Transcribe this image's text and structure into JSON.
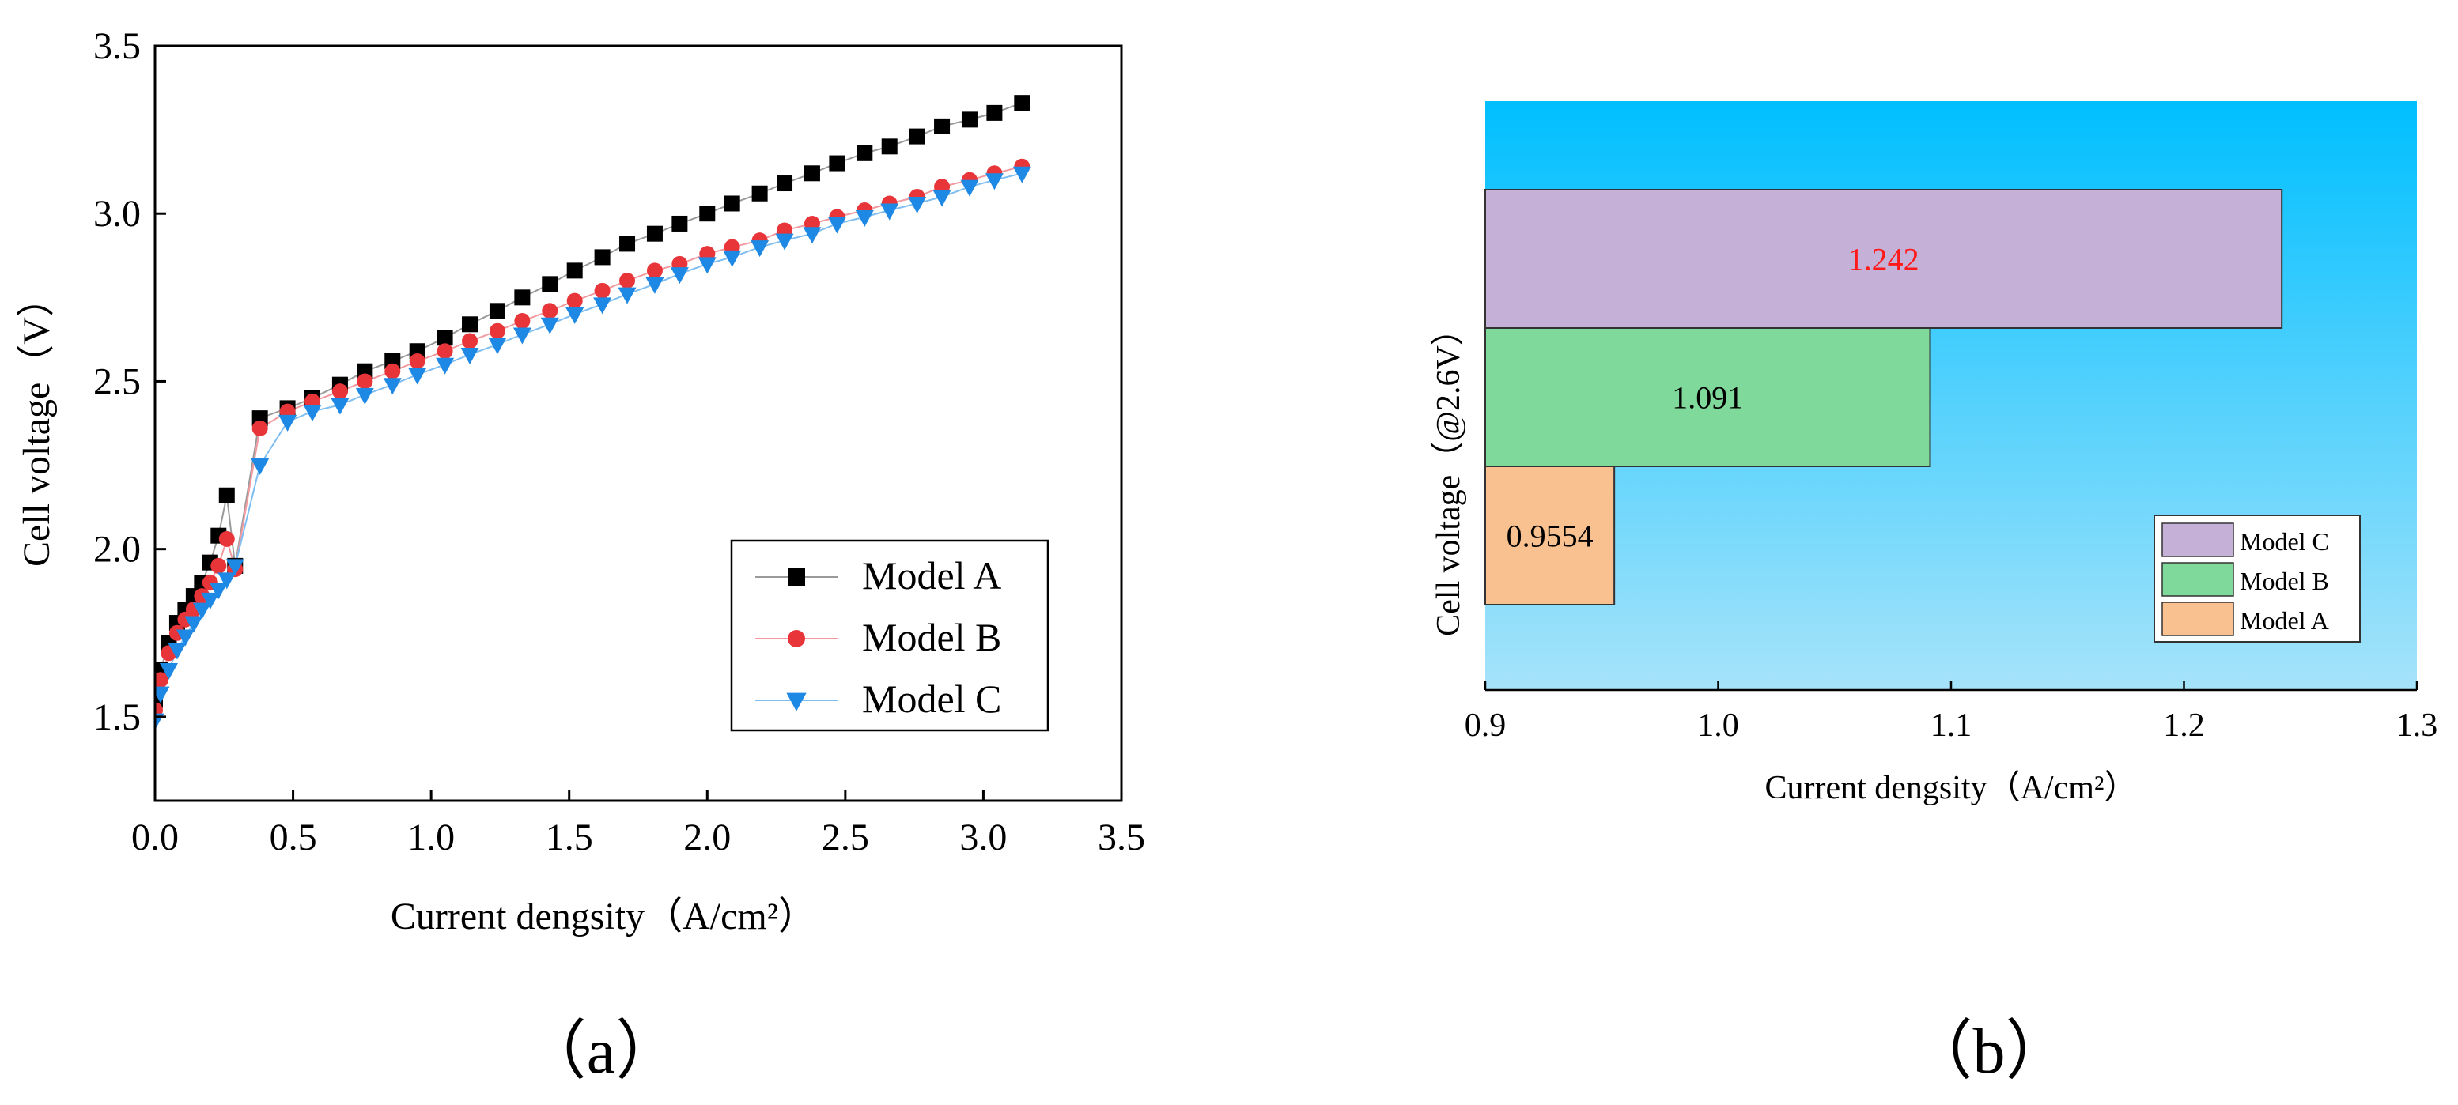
{
  "chart_data": [
    {
      "id": "a",
      "type": "line",
      "panel_label": "（a）",
      "title": "",
      "xlabel": "Current dengsity（A/cm²）",
      "ylabel": "Cell voltage（V）",
      "xlim": [
        0.0,
        3.5
      ],
      "ylim": [
        1.25,
        3.5
      ],
      "x_ticks": [
        "0.0",
        "0.5",
        "1.0",
        "1.5",
        "2.0",
        "2.5",
        "3.0",
        "3.5"
      ],
      "y_ticks": [
        "1.5",
        "2.0",
        "2.5",
        "3.0",
        "3.5"
      ],
      "legend_position": "bottom-right",
      "series": [
        {
          "name": "Model A",
          "marker": "square",
          "color": "#000000",
          "x": [
            0.0,
            0.02,
            0.05,
            0.08,
            0.11,
            0.14,
            0.17,
            0.2,
            0.23,
            0.26,
            0.29,
            0.38,
            0.48,
            0.57,
            0.67,
            0.76,
            0.86,
            0.95,
            1.05,
            1.14,
            1.24,
            1.33,
            1.43,
            1.52,
            1.62,
            1.71,
            1.81,
            1.9,
            2.0,
            2.09,
            2.19,
            2.28,
            2.38,
            2.47,
            2.57,
            2.66,
            2.76,
            2.85,
            2.95,
            3.04,
            3.14
          ],
          "y": [
            1.55,
            1.64,
            1.72,
            1.78,
            1.82,
            1.86,
            1.9,
            1.96,
            2.04,
            2.16,
            1.95,
            2.39,
            2.42,
            2.45,
            2.49,
            2.53,
            2.56,
            2.59,
            2.63,
            2.67,
            2.71,
            2.75,
            2.79,
            2.83,
            2.87,
            2.91,
            2.94,
            2.97,
            3.0,
            3.03,
            3.06,
            3.09,
            3.12,
            3.15,
            3.18,
            3.2,
            3.23,
            3.26,
            3.28,
            3.3,
            3.33
          ]
        },
        {
          "name": "Model B",
          "marker": "circle",
          "color": "#e8353a",
          "x": [
            0.0,
            0.02,
            0.05,
            0.08,
            0.11,
            0.14,
            0.17,
            0.2,
            0.23,
            0.26,
            0.29,
            0.38,
            0.48,
            0.57,
            0.67,
            0.76,
            0.86,
            0.95,
            1.05,
            1.14,
            1.24,
            1.33,
            1.43,
            1.52,
            1.62,
            1.71,
            1.81,
            1.9,
            2.0,
            2.09,
            2.19,
            2.28,
            2.38,
            2.47,
            2.57,
            2.66,
            2.76,
            2.85,
            2.95,
            3.04,
            3.14
          ],
          "y": [
            1.52,
            1.61,
            1.69,
            1.75,
            1.79,
            1.82,
            1.86,
            1.9,
            1.95,
            2.03,
            1.94,
            2.36,
            2.41,
            2.44,
            2.47,
            2.5,
            2.53,
            2.56,
            2.59,
            2.62,
            2.65,
            2.68,
            2.71,
            2.74,
            2.77,
            2.8,
            2.83,
            2.85,
            2.88,
            2.9,
            2.92,
            2.95,
            2.97,
            2.99,
            3.01,
            3.03,
            3.05,
            3.08,
            3.1,
            3.12,
            3.14
          ]
        },
        {
          "name": "Model C",
          "marker": "triangle-down",
          "color": "#1e88e5",
          "x": [
            0.0,
            0.02,
            0.05,
            0.08,
            0.11,
            0.14,
            0.17,
            0.2,
            0.23,
            0.26,
            0.29,
            0.38,
            0.48,
            0.57,
            0.67,
            0.76,
            0.86,
            0.95,
            1.05,
            1.14,
            1.24,
            1.33,
            1.43,
            1.52,
            1.62,
            1.71,
            1.81,
            1.9,
            2.0,
            2.09,
            2.19,
            2.28,
            2.38,
            2.47,
            2.57,
            2.66,
            2.76,
            2.85,
            2.95,
            3.04,
            3.14
          ],
          "y": [
            1.49,
            1.57,
            1.64,
            1.7,
            1.74,
            1.78,
            1.82,
            1.85,
            1.88,
            1.91,
            1.95,
            2.25,
            2.38,
            2.41,
            2.43,
            2.46,
            2.49,
            2.52,
            2.55,
            2.58,
            2.61,
            2.64,
            2.67,
            2.7,
            2.73,
            2.76,
            2.79,
            2.82,
            2.85,
            2.87,
            2.9,
            2.92,
            2.94,
            2.97,
            2.99,
            3.01,
            3.03,
            3.05,
            3.08,
            3.1,
            3.12
          ]
        }
      ]
    },
    {
      "id": "b",
      "type": "bar",
      "orientation": "horizontal",
      "panel_label": "（b）",
      "title": "",
      "xlabel": "Current dengsity（A/cm²）",
      "ylabel": "Cell voltage（@2.6V）",
      "xlim": [
        0.9,
        1.3
      ],
      "x_ticks": [
        "0.9",
        "1.0",
        "1.1",
        "1.2",
        "1.3"
      ],
      "legend_position": "bottom-right",
      "background_gradient": [
        "#00bfff",
        "#a6e3fa"
      ],
      "categories": [
        "Model C",
        "Model B",
        "Model A"
      ],
      "values": [
        1.242,
        1.091,
        0.9554
      ],
      "value_labels": [
        "1.242",
        "1.091",
        "0.9554"
      ],
      "value_label_colors": [
        "#ff1a1a",
        "#000000",
        "#000000"
      ],
      "colors": [
        "#c5b1d8",
        "#7fd99a",
        "#f9c18f"
      ]
    }
  ]
}
